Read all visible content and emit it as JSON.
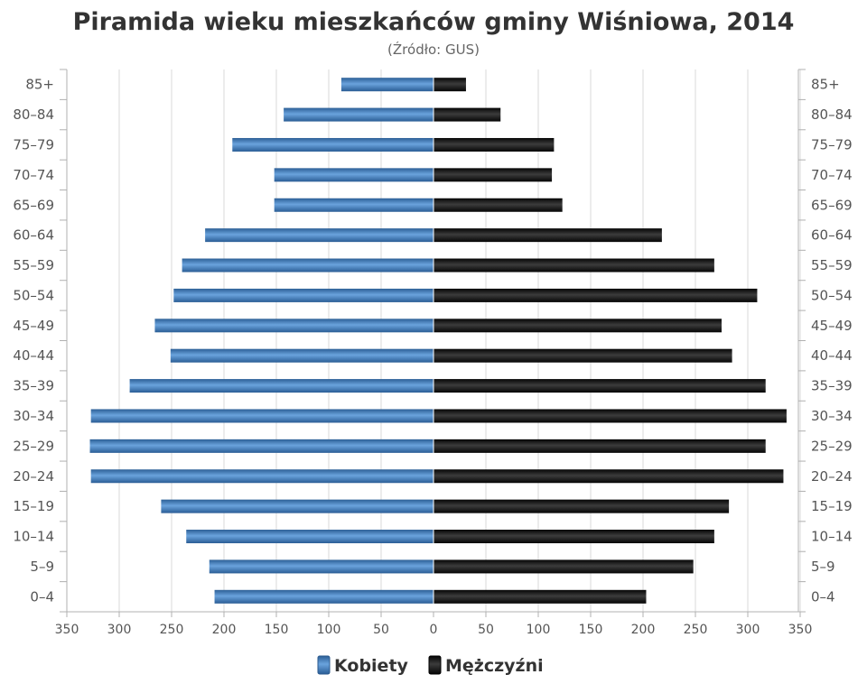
{
  "chart_data": {
    "type": "bar",
    "orientation": "horizontal",
    "subtype": "population-pyramid",
    "title": "Piramida wieku mieszkańców gminy Wiśniowa, 2014",
    "subtitle": "(Źródło: GUS)",
    "categories": [
      "0–4",
      "5–9",
      "10–14",
      "15–19",
      "20–24",
      "25–29",
      "30–34",
      "35–39",
      "40–44",
      "45–49",
      "50–54",
      "55–59",
      "60–64",
      "65–69",
      "70–74",
      "75–79",
      "80–84",
      "85+"
    ],
    "series": [
      {
        "name": "Kobiety",
        "side": "left",
        "color": "#3f7fc0",
        "values": [
          209,
          214,
          236,
          260,
          327,
          328,
          327,
          290,
          251,
          266,
          248,
          240,
          218,
          152,
          152,
          192,
          143,
          88
        ]
      },
      {
        "name": "Mężczyźni",
        "side": "right",
        "color": "#1a1a1a",
        "values": [
          203,
          248,
          268,
          282,
          334,
          317,
          337,
          317,
          285,
          275,
          309,
          268,
          218,
          123,
          113,
          115,
          64,
          31
        ]
      }
    ],
    "x_axis": {
      "min": -350,
      "max": 350,
      "ticks": [
        "350",
        "300",
        "250",
        "200",
        "150",
        "100",
        "50",
        "0",
        "50",
        "100",
        "150",
        "200",
        "250",
        "300",
        "350"
      ]
    },
    "grid": true,
    "legend": "bottom"
  }
}
